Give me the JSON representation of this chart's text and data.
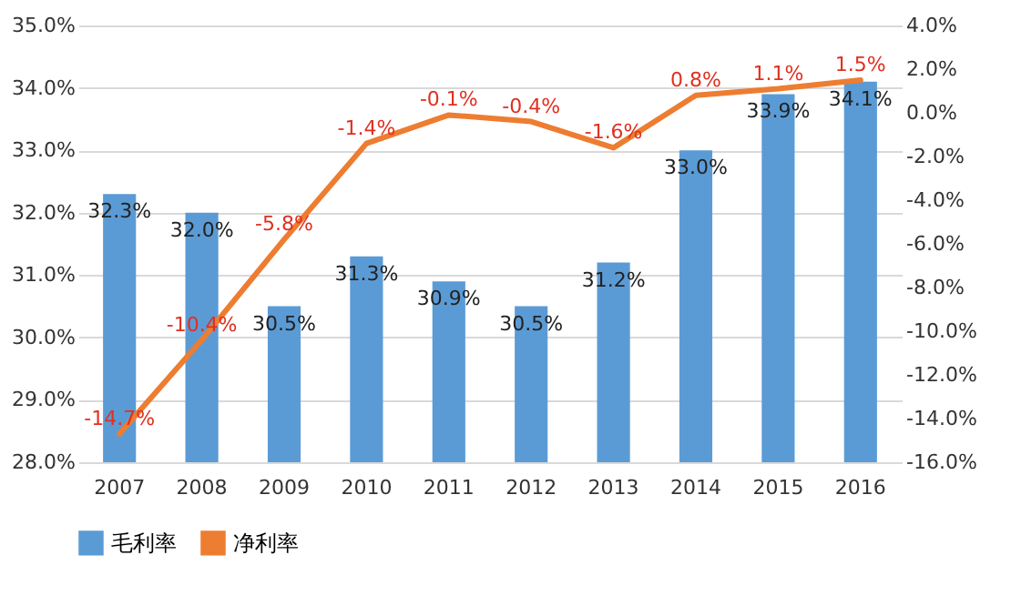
{
  "chart_data": {
    "type": "bar",
    "categories": [
      "2007",
      "2008",
      "2009",
      "2010",
      "2011",
      "2012",
      "2013",
      "2014",
      "2015",
      "2016"
    ],
    "series": [
      {
        "name": "毛利率",
        "color": "#5b9bd5",
        "values": [
          32.3,
          32.0,
          30.5,
          31.3,
          30.9,
          30.5,
          31.2,
          33.0,
          33.9,
          34.1
        ],
        "value_labels": [
          "32.3%",
          "32.0%",
          "30.5%",
          "31.3%",
          "30.9%",
          "30.5%",
          "31.2%",
          "33.0%",
          "33.9%",
          "34.1%"
        ]
      },
      {
        "name": "净利率",
        "type": "line",
        "axis": "y2",
        "color": "#ed7d31",
        "values": [
          -14.7,
          -10.4,
          -5.8,
          -1.4,
          -0.1,
          -0.4,
          -1.6,
          0.8,
          1.1,
          1.5
        ],
        "value_labels": [
          "-14.7%",
          "-10.4%",
          "-5.8%",
          "-1.4%",
          "-0.1%",
          "-0.4%",
          "-1.6%",
          "0.8%",
          "1.1%",
          "1.5%"
        ]
      }
    ],
    "ylim": [
      28,
      35
    ],
    "yticks": [
      {
        "value": 28,
        "label": "28.0%"
      },
      {
        "value": 29,
        "label": "29.0%"
      },
      {
        "value": 30,
        "label": "30.0%"
      },
      {
        "value": 31,
        "label": "31.0%"
      },
      {
        "value": 32,
        "label": "32.0%"
      },
      {
        "value": 33,
        "label": "33.0%"
      },
      {
        "value": 34,
        "label": "34.0%"
      },
      {
        "value": 35,
        "label": "35.0%"
      }
    ],
    "y2lim": [
      -16,
      4
    ],
    "y2ticks": [
      {
        "value": -16,
        "label": "-16.0%"
      },
      {
        "value": -14,
        "label": "-14.0%"
      },
      {
        "value": -12,
        "label": "-12.0%"
      },
      {
        "value": -10,
        "label": "-10.0%"
      },
      {
        "value": -8,
        "label": "-8.0%"
      },
      {
        "value": -6,
        "label": "-6.0%"
      },
      {
        "value": -4,
        "label": "-4.0%"
      },
      {
        "value": -2,
        "label": "-2.0%"
      },
      {
        "value": 0,
        "label": "0.0%"
      },
      {
        "value": 2,
        "label": "2.0%"
      },
      {
        "value": 4,
        "label": "4.0%"
      }
    ],
    "grid": "y",
    "legend": "bottom"
  }
}
